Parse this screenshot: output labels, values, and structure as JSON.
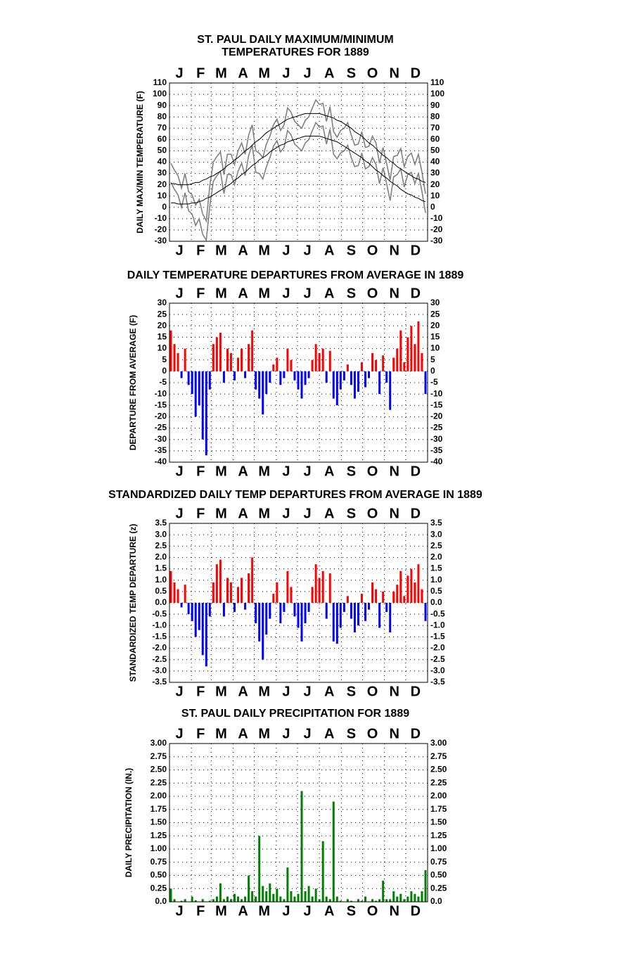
{
  "chart_data": [
    {
      "type": "line",
      "title": [
        "ST. PAUL DAILY MAXIMUM/MINIMUM",
        "TEMPERATURES FOR 1889"
      ],
      "y_label": "DAILY MAX/MIN TEMPERATURE (F)",
      "x": [
        3,
        8,
        13,
        18,
        23,
        28,
        33,
        38,
        43,
        48,
        53,
        58,
        63,
        68,
        73,
        78,
        83,
        88,
        93,
        98,
        103,
        108,
        113,
        118,
        123,
        128,
        133,
        138,
        143,
        148,
        153,
        158,
        163,
        168,
        173,
        178,
        183,
        188,
        193,
        198,
        203,
        208,
        213,
        218,
        223,
        228,
        233,
        238,
        243,
        248,
        253,
        258,
        263,
        268,
        273,
        278,
        283,
        288,
        293,
        298,
        303,
        308,
        313,
        318,
        323,
        328,
        333,
        338,
        343,
        348,
        353,
        358,
        363
      ],
      "xlim": [
        1,
        366
      ],
      "xticks": [
        {
          "value": 15,
          "label": "J"
        },
        {
          "value": 45,
          "label": "F"
        },
        {
          "value": 74,
          "label": "M"
        },
        {
          "value": 105,
          "label": "A"
        },
        {
          "value": 135,
          "label": "M"
        },
        {
          "value": 166,
          "label": "J"
        },
        {
          "value": 196,
          "label": "J"
        },
        {
          "value": 227,
          "label": "A"
        },
        {
          "value": 258,
          "label": "S"
        },
        {
          "value": 288,
          "label": "O"
        },
        {
          "value": 319,
          "label": "N"
        },
        {
          "value": 349,
          "label": "D"
        }
      ],
      "xgrid": [
        32,
        60,
        91,
        121,
        152,
        182,
        213,
        244,
        274,
        305,
        335
      ],
      "ylim": [
        -30,
        110
      ],
      "yticks": [
        -30,
        -20,
        -10,
        0,
        10,
        20,
        30,
        40,
        50,
        60,
        70,
        80,
        90,
        100,
        110
      ],
      "grid": true,
      "series": [
        {
          "color": "#808080",
          "values": [
            39,
            33,
            28,
            17,
            30,
            14,
            11,
            2,
            7,
            -6,
            -12,
            19,
            40,
            45,
            49,
            29,
            47,
            47,
            38,
            50,
            57,
            47,
            64,
            73,
            50,
            48,
            44,
            56,
            63,
            73,
            78,
            68,
            73,
            88,
            84,
            76,
            73,
            70,
            77,
            80,
            88,
            95,
            91,
            92,
            76,
            89,
            67,
            62,
            68,
            70,
            75,
            64,
            55,
            56,
            67,
            53,
            54,
            63,
            57,
            39,
            53,
            39,
            24,
            45,
            46,
            52,
            36,
            45,
            48,
            38,
            47,
            31,
            12
          ]
        },
        {
          "color": "#808080",
          "values": [
            22,
            16,
            11,
            0,
            13,
            -3,
            -6,
            -16,
            -10,
            -24,
            -29,
            1,
            23,
            28,
            32,
            12,
            29,
            29,
            20,
            32,
            39,
            28,
            46,
            55,
            31,
            30,
            25,
            36,
            44,
            54,
            59,
            49,
            53,
            68,
            64,
            56,
            53,
            50,
            57,
            60,
            68,
            75,
            71,
            72,
            56,
            69,
            47,
            43,
            48,
            50,
            55,
            44,
            36,
            37,
            48,
            34,
            36,
            44,
            38,
            21,
            35,
            21,
            6,
            27,
            29,
            34,
            18,
            29,
            31,
            21,
            30,
            14,
            -5
          ]
        },
        {
          "color": "#000000",
          "values": [
            21,
            21,
            20,
            20,
            20,
            20,
            21,
            22,
            22,
            24,
            25,
            27,
            28,
            30,
            32,
            34,
            37,
            39,
            42,
            44,
            47,
            50,
            52,
            55,
            58,
            60,
            63,
            66,
            68,
            70,
            72,
            74,
            76,
            78,
            79,
            80,
            81,
            82,
            83,
            83,
            83,
            83,
            83,
            82,
            81,
            80,
            79,
            77,
            76,
            74,
            72,
            70,
            67,
            65,
            63,
            60,
            57,
            55,
            52,
            49,
            46,
            44,
            41,
            39,
            36,
            34,
            32,
            30,
            28,
            26,
            25,
            23,
            22
          ]
        },
        {
          "color": "#000000",
          "values": [
            4,
            4,
            3,
            3,
            3,
            3,
            4,
            4,
            5,
            6,
            8,
            9,
            11,
            13,
            15,
            17,
            19,
            21,
            24,
            26,
            29,
            31,
            34,
            37,
            39,
            42,
            44,
            46,
            49,
            51,
            53,
            55,
            56,
            58,
            59,
            60,
            61,
            62,
            63,
            63,
            63,
            63,
            63,
            62,
            61,
            60,
            59,
            58,
            56,
            54,
            52,
            50,
            48,
            46,
            44,
            41,
            39,
            36,
            33,
            31,
            28,
            26,
            23,
            21,
            19,
            16,
            14,
            12,
            11,
            9,
            8,
            6,
            5
          ]
        }
      ]
    },
    {
      "type": "bar",
      "title": [
        "DAILY TEMPERATURE DEPARTURES FROM AVERAGE IN 1889"
      ],
      "y_label": "DEPARTURE FROM AVERAGE (F)",
      "x": [
        3,
        8,
        13,
        18,
        23,
        28,
        33,
        38,
        43,
        48,
        53,
        58,
        63,
        68,
        73,
        78,
        83,
        88,
        93,
        98,
        103,
        108,
        113,
        118,
        123,
        128,
        133,
        138,
        143,
        148,
        153,
        158,
        163,
        168,
        173,
        178,
        183,
        188,
        193,
        198,
        203,
        208,
        213,
        218,
        223,
        228,
        233,
        238,
        243,
        248,
        253,
        258,
        263,
        268,
        273,
        278,
        283,
        288,
        293,
        298,
        303,
        308,
        313,
        318,
        323,
        328,
        333,
        338,
        343,
        348,
        353,
        358,
        363
      ],
      "xlim": [
        1,
        366
      ],
      "xticks": [
        {
          "value": 15,
          "label": "J"
        },
        {
          "value": 45,
          "label": "F"
        },
        {
          "value": 74,
          "label": "M"
        },
        {
          "value": 105,
          "label": "A"
        },
        {
          "value": 135,
          "label": "M"
        },
        {
          "value": 166,
          "label": "J"
        },
        {
          "value": 196,
          "label": "J"
        },
        {
          "value": 227,
          "label": "A"
        },
        {
          "value": 258,
          "label": "S"
        },
        {
          "value": 288,
          "label": "O"
        },
        {
          "value": 319,
          "label": "N"
        },
        {
          "value": 349,
          "label": "D"
        }
      ],
      "xgrid": [
        32,
        60,
        91,
        121,
        152,
        182,
        213,
        244,
        274,
        305,
        335
      ],
      "ylim": [
        -40,
        30
      ],
      "yticks": [
        -40,
        -35,
        -30,
        -25,
        -20,
        -15,
        -10,
        -5,
        0,
        5,
        10,
        15,
        20,
        25,
        30
      ],
      "grid": true,
      "positive_color": "#ff0000",
      "negative_color": "#0000ff",
      "values": [
        18,
        12,
        8,
        -3,
        10,
        -6,
        -10,
        -20,
        -15,
        -30,
        -37,
        -8,
        12,
        15,
        17,
        -5,
        10,
        8,
        -4,
        6,
        10,
        -3,
        12,
        18,
        -8,
        -12,
        -19,
        -10,
        -5,
        3,
        6,
        -6,
        -3,
        10,
        5,
        -4,
        -8,
        -12,
        -6,
        -3,
        5,
        12,
        8,
        10,
        -5,
        9,
        -12,
        -15,
        -8,
        -4,
        3,
        -6,
        -12,
        -9,
        4,
        -7,
        -3,
        8,
        5,
        -10,
        7,
        -5,
        -17,
        6,
        10,
        18,
        4,
        15,
        20,
        12,
        22,
        8,
        -10
      ]
    },
    {
      "type": "bar",
      "title": [
        "STANDARDIZED DAILY TEMP DEPARTURES FROM AVERAGE IN 1889"
      ],
      "y_label": "STANDARDIZED TEMP DEPARTURE (z)",
      "x": [
        3,
        8,
        13,
        18,
        23,
        28,
        33,
        38,
        43,
        48,
        53,
        58,
        63,
        68,
        73,
        78,
        83,
        88,
        93,
        98,
        103,
        108,
        113,
        118,
        123,
        128,
        133,
        138,
        143,
        148,
        153,
        158,
        163,
        168,
        173,
        178,
        183,
        188,
        193,
        198,
        203,
        208,
        213,
        218,
        223,
        228,
        233,
        238,
        243,
        248,
        253,
        258,
        263,
        268,
        273,
        278,
        283,
        288,
        293,
        298,
        303,
        308,
        313,
        318,
        323,
        328,
        333,
        338,
        343,
        348,
        353,
        358,
        363
      ],
      "xlim": [
        1,
        366
      ],
      "xticks": [
        {
          "value": 15,
          "label": "J"
        },
        {
          "value": 45,
          "label": "F"
        },
        {
          "value": 74,
          "label": "M"
        },
        {
          "value": 105,
          "label": "A"
        },
        {
          "value": 135,
          "label": "M"
        },
        {
          "value": 166,
          "label": "J"
        },
        {
          "value": 196,
          "label": "J"
        },
        {
          "value": 227,
          "label": "A"
        },
        {
          "value": 258,
          "label": "S"
        },
        {
          "value": 288,
          "label": "O"
        },
        {
          "value": 319,
          "label": "N"
        },
        {
          "value": 349,
          "label": "D"
        }
      ],
      "xgrid": [
        32,
        60,
        91,
        121,
        152,
        182,
        213,
        244,
        274,
        305,
        335
      ],
      "ylim": [
        -3.5,
        3.5
      ],
      "yticks": [
        -3.5,
        {
          "value": -3,
          "label": "-3.0"
        },
        -2.5,
        {
          "value": -2,
          "label": "-2.0"
        },
        -1.5,
        {
          "value": -1,
          "label": "-1.0"
        },
        -0.5,
        {
          "value": 0,
          "label": "0.0"
        },
        0.5,
        {
          "value": 1,
          "label": "1.0"
        },
        1.5,
        {
          "value": 2,
          "label": "2.0"
        },
        2.5,
        {
          "value": 3,
          "label": "3.0"
        },
        3.5
      ],
      "grid": true,
      "positive_color": "#ff0000",
      "negative_color": "#0000ff",
      "values": [
        1.4,
        0.9,
        0.6,
        -0.2,
        0.8,
        -0.5,
        -0.8,
        -1.5,
        -1.2,
        -2.3,
        -2.8,
        -0.6,
        0.9,
        1.7,
        1.9,
        -0.6,
        1.1,
        0.9,
        -0.4,
        0.7,
        1.1,
        -0.3,
        1.3,
        2.0,
        -0.9,
        -1.7,
        -2.5,
        -1.4,
        -0.7,
        0.4,
        0.9,
        -0.9,
        -0.4,
        1.4,
        0.7,
        -0.6,
        -1.1,
        -1.7,
        -0.9,
        -0.4,
        0.7,
        1.7,
        1.1,
        1.4,
        -0.7,
        1.3,
        -1.7,
        -1.8,
        -1.1,
        -0.4,
        0.3,
        -0.7,
        -1.3,
        -1.0,
        0.4,
        -0.8,
        -0.3,
        0.9,
        0.6,
        -1.1,
        0.5,
        -0.4,
        -1.3,
        0.5,
        0.8,
        1.4,
        0.3,
        1.2,
        1.5,
        0.9,
        1.7,
        0.6,
        -0.8
      ]
    },
    {
      "type": "bar",
      "title": [
        "ST. PAUL DAILY PRECIPITATION FOR 1889"
      ],
      "y_label": "DAILY PRECIPITATION (IN.)",
      "x": [
        3,
        8,
        13,
        18,
        23,
        28,
        33,
        38,
        43,
        48,
        53,
        58,
        63,
        68,
        73,
        78,
        83,
        88,
        93,
        98,
        103,
        108,
        113,
        118,
        123,
        128,
        133,
        138,
        143,
        148,
        153,
        158,
        163,
        168,
        173,
        178,
        183,
        188,
        193,
        198,
        203,
        208,
        213,
        218,
        223,
        228,
        233,
        238,
        243,
        248,
        253,
        258,
        263,
        268,
        273,
        278,
        283,
        288,
        293,
        298,
        303,
        308,
        313,
        318,
        323,
        328,
        333,
        338,
        343,
        348,
        353,
        358,
        363
      ],
      "xlim": [
        1,
        366
      ],
      "xticks": [
        {
          "value": 15,
          "label": "J"
        },
        {
          "value": 45,
          "label": "F"
        },
        {
          "value": 74,
          "label": "M"
        },
        {
          "value": 105,
          "label": "A"
        },
        {
          "value": 135,
          "label": "M"
        },
        {
          "value": 166,
          "label": "J"
        },
        {
          "value": 196,
          "label": "J"
        },
        {
          "value": 227,
          "label": "A"
        },
        {
          "value": 258,
          "label": "S"
        },
        {
          "value": 288,
          "label": "O"
        },
        {
          "value": 319,
          "label": "N"
        },
        {
          "value": 349,
          "label": "D"
        }
      ],
      "xgrid": [
        32,
        60,
        91,
        121,
        152,
        182,
        213,
        244,
        274,
        305,
        335
      ],
      "ylim": [
        0,
        3
      ],
      "yticks": [
        {
          "value": 0,
          "label": "0.0"
        },
        0.25,
        {
          "value": 0.5,
          "label": "0.50"
        },
        0.75,
        {
          "value": 1,
          "label": "1.00"
        },
        1.25,
        {
          "value": 1.5,
          "label": "1.50"
        },
        1.75,
        {
          "value": 2,
          "label": "2.00"
        },
        2.25,
        {
          "value": 2.5,
          "label": "2.50"
        },
        2.75,
        {
          "value": 3,
          "label": "3.00"
        }
      ],
      "grid": true,
      "positive_color": "#008000",
      "negative_color": "#008000",
      "values": [
        0.25,
        0.05,
        0,
        0.02,
        0.05,
        0,
        0.1,
        0.03,
        0,
        0.05,
        0,
        0.02,
        0.05,
        0.1,
        0.35,
        0.05,
        0.1,
        0.05,
        0.15,
        0.1,
        0.05,
        0.1,
        0.5,
        0.2,
        0.1,
        1.25,
        0.3,
        0.2,
        0.35,
        0.15,
        0.25,
        0.1,
        0.05,
        0.65,
        0.2,
        0.1,
        0.15,
        2.1,
        0.2,
        0.3,
        0.1,
        0.25,
        0.05,
        1.15,
        0.1,
        0.05,
        1.9,
        0.1,
        0.02,
        0,
        0.05,
        0.02,
        0,
        0.05,
        0.02,
        0.1,
        0,
        0.05,
        0.02,
        0.05,
        0.4,
        0.05,
        0.05,
        0.2,
        0.1,
        0.15,
        0.05,
        0.1,
        0.2,
        0.15,
        0.1,
        0.2,
        0.6
      ]
    }
  ]
}
